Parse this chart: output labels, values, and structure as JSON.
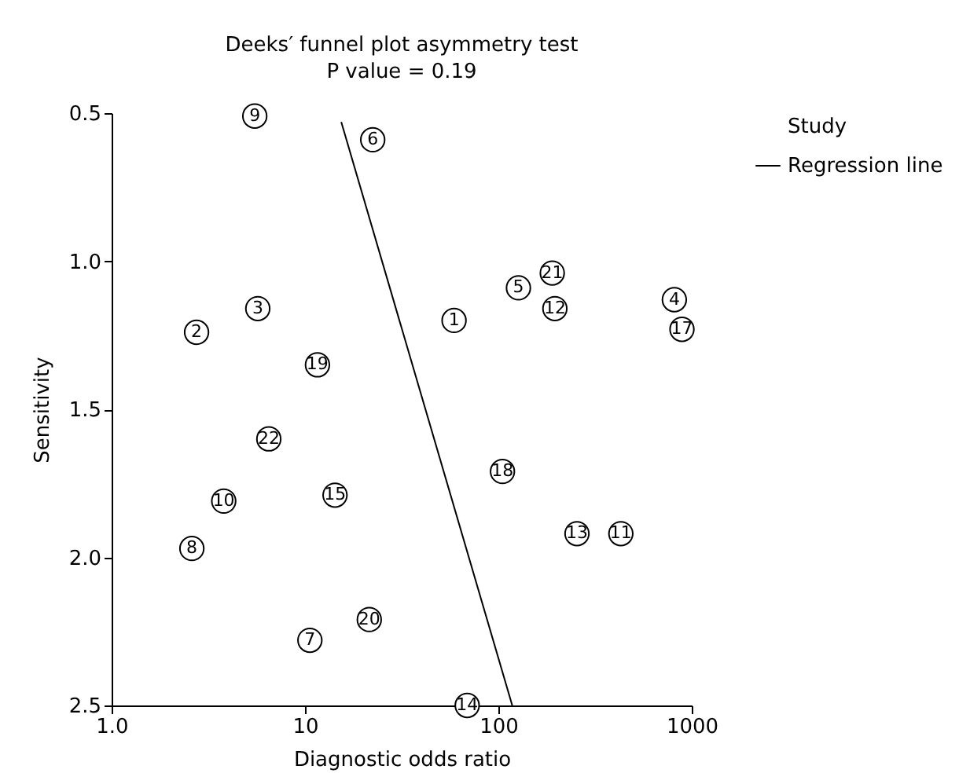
{
  "chart_data": {
    "type": "scatter",
    "title": "Deeks′ funnel plot asymmetry test",
    "subtitle": "P value = 0.19",
    "xlabel": "Diagnostic odds ratio",
    "ylabel": "Sensitivity",
    "log": "x",
    "grid": false,
    "legend": "top right",
    "marker": "circle",
    "xlim": [
      1,
      1000
    ],
    "xticks": [
      {
        "value": 1,
        "label": "1.0"
      },
      10,
      100,
      1000
    ],
    "ylim": [
      2.5,
      0.5
    ],
    "yticks": [
      0.5,
      {
        "value": 1,
        "label": "1.0"
      },
      1.5,
      {
        "value": 2,
        "label": "2.0"
      },
      2.5
    ],
    "series": [
      {
        "name": "Study",
        "color": "#000000",
        "x": [
          59,
          2.75,
          5.7,
          813,
          127,
          22.4,
          10.6,
          2.6,
          5.5,
          3.8,
          430,
          196,
          255,
          69,
          14.3,
          890,
          105,
          11.6,
          21.5,
          190,
          6.5
        ],
        "values": [
          1.2,
          1.24,
          1.16,
          1.13,
          1.09,
          0.59,
          2.28,
          1.97,
          0.51,
          1.81,
          1.92,
          1.16,
          1.92,
          2.5,
          1.79,
          1.23,
          1.71,
          1.35,
          2.21,
          1.04,
          1.6
        ]
      },
      {
        "name": "Regression line",
        "color": "#000000",
        "type": "line",
        "line_style": "solid",
        "marker": "none",
        "x": [
          15.4,
          118
        ],
        "values": [
          0.53,
          2.5
        ]
      }
    ],
    "annotations": [
      {
        "text": "1",
        "x": 59,
        "y": 1.2
      },
      {
        "text": "2",
        "x": 2.75,
        "y": 1.24
      },
      {
        "text": "3",
        "x": 5.7,
        "y": 1.16
      },
      {
        "text": "4",
        "x": 813,
        "y": 1.13
      },
      {
        "text": "5",
        "x": 127,
        "y": 1.09
      },
      {
        "text": "6",
        "x": 22.4,
        "y": 0.59
      },
      {
        "text": "7",
        "x": 10.6,
        "y": 2.28
      },
      {
        "text": "8",
        "x": 2.6,
        "y": 1.97
      },
      {
        "text": "9",
        "x": 5.5,
        "y": 0.51
      },
      {
        "text": "10",
        "x": 3.8,
        "y": 1.81
      },
      {
        "text": "11",
        "x": 430,
        "y": 1.92
      },
      {
        "text": "12",
        "x": 196,
        "y": 1.16
      },
      {
        "text": "13",
        "x": 255,
        "y": 1.92
      },
      {
        "text": "14",
        "x": 69,
        "y": 2.5
      },
      {
        "text": "15",
        "x": 14.3,
        "y": 1.79
      },
      {
        "text": "17",
        "x": 890,
        "y": 1.23
      },
      {
        "text": "18",
        "x": 105,
        "y": 1.71
      },
      {
        "text": "19",
        "x": 11.6,
        "y": 1.35
      },
      {
        "text": "20",
        "x": 21.5,
        "y": 2.21
      },
      {
        "text": "21",
        "x": 190,
        "y": 1.04
      },
      {
        "text": "22",
        "x": 6.5,
        "y": 1.6
      }
    ]
  }
}
